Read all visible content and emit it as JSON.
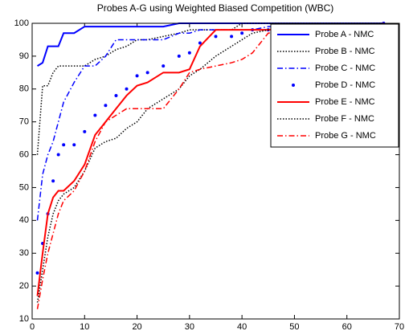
{
  "chart_data": {
    "type": "line",
    "title": "Probes A-G using Weighted Biased Competition (WBC)",
    "x": [
      1,
      2,
      3,
      4,
      5,
      6,
      8,
      10,
      12,
      14,
      16,
      18,
      20,
      22,
      25,
      28,
      30,
      32,
      35,
      38,
      40,
      42,
      45,
      50,
      55,
      60,
      65,
      67
    ],
    "xlim": [
      0,
      70
    ],
    "xticks": [
      0,
      10,
      20,
      30,
      40,
      50,
      60,
      70
    ],
    "ylim": [
      10,
      100
    ],
    "yticks": [
      10,
      20,
      30,
      40,
      50,
      60,
      70,
      80,
      90,
      100
    ],
    "legend": "northeast",
    "series": [
      {
        "name": "Probe A - NMC",
        "color": "#0000ff",
        "style": "solid",
        "values": [
          87,
          88,
          93,
          93,
          93,
          97,
          97,
          99,
          99,
          99,
          99,
          99,
          99,
          99,
          99,
          100,
          100,
          100,
          100,
          100,
          100,
          100,
          100,
          100,
          100,
          100,
          100,
          100
        ]
      },
      {
        "name": "Probe B - NMC",
        "color": "#000000",
        "style": "dotted",
        "values": [
          60,
          81,
          81,
          85,
          87,
          87,
          87,
          87,
          89,
          90,
          92,
          93,
          95,
          95,
          96,
          97,
          98,
          98,
          98,
          98,
          100,
          100,
          100,
          100,
          100,
          100,
          100,
          100
        ]
      },
      {
        "name": "Probe C - NMC",
        "color": "#0000ff",
        "style": "dashdot",
        "values": [
          40,
          54,
          60,
          64,
          70,
          76,
          82,
          87,
          87,
          90,
          95,
          95,
          95,
          95,
          95,
          97,
          97,
          98,
          98,
          98,
          98,
          98,
          99,
          99,
          99,
          99,
          99,
          100
        ]
      },
      {
        "name": "Probe D - NMC",
        "color": "#0000ff",
        "style": "markers",
        "values": [
          24,
          33,
          42,
          52,
          60,
          63,
          63,
          67,
          72,
          75,
          78,
          80,
          84,
          85,
          87,
          90,
          91,
          94,
          96,
          96,
          97,
          98,
          98,
          98,
          99,
          99,
          99,
          100
        ]
      },
      {
        "name": "Probe E - NMC",
        "color": "#ff0000",
        "style": "solid",
        "values": [
          17,
          30,
          42,
          47,
          49,
          49,
          52,
          57,
          66,
          70,
          74,
          78,
          81,
          82,
          85,
          85,
          86,
          93,
          98,
          98,
          98,
          98,
          98,
          99,
          99,
          99,
          99,
          100
        ]
      },
      {
        "name": "Probe F - NMC",
        "color": "#000000",
        "style": "dotted",
        "values": [
          15,
          25,
          35,
          42,
          46,
          48,
          50,
          55,
          62,
          64,
          65,
          68,
          70,
          74,
          77,
          80,
          84,
          86,
          90,
          93,
          95,
          97,
          98,
          98,
          99,
          99,
          99,
          100
        ]
      },
      {
        "name": "Probe G - NMC",
        "color": "#ff0000",
        "style": "dashdot",
        "values": [
          13,
          22,
          30,
          36,
          42,
          46,
          49,
          55,
          64,
          70,
          72,
          74,
          74,
          74,
          74,
          80,
          85,
          86,
          87,
          88,
          89,
          91,
          97,
          98,
          99,
          99,
          99,
          100
        ]
      }
    ]
  }
}
